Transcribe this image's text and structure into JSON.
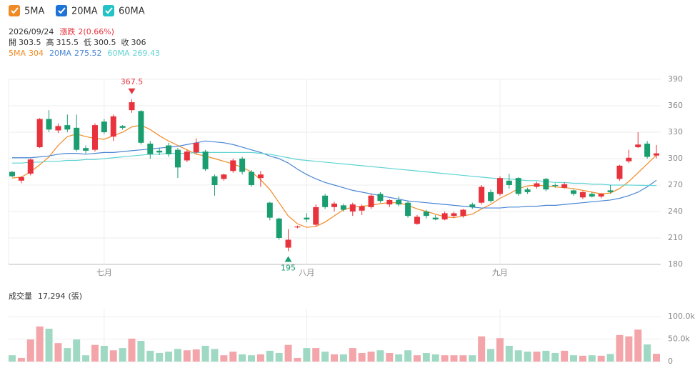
{
  "chart_data": {
    "type": "candlestick",
    "info": {
      "date": "2026/09/24",
      "change_label": "漲跌",
      "change": "2(0.66%)",
      "ohlc_labels": [
        "開",
        "高",
        "低",
        "收"
      ]
    },
    "categories": [
      null,
      null,
      null,
      null,
      null,
      null,
      null,
      null,
      null,
      null,
      "七月",
      null,
      null,
      null,
      null,
      null,
      null,
      null,
      null,
      null,
      null,
      null,
      null,
      null,
      null,
      null,
      null,
      null,
      null,
      null,
      null,
      null,
      "八月",
      null,
      null,
      null,
      null,
      null,
      null,
      null,
      null,
      null,
      null,
      null,
      null,
      null,
      null,
      null,
      null,
      null,
      null,
      null,
      null,
      "九月",
      null,
      null,
      null,
      null,
      null,
      null,
      null,
      null,
      null,
      null,
      null,
      null,
      null,
      null,
      null,
      null,
      null
    ],
    "open": [
      285,
      275,
      283,
      313,
      345,
      332,
      338,
      335,
      312,
      310,
      342,
      325,
      337,
      355,
      354,
      317,
      309,
      315,
      310,
      298,
      307,
      308,
      280,
      277,
      286,
      300,
      285,
      278,
      250,
      232,
      199,
      222,
      233,
      225,
      258,
      245,
      247,
      240,
      241,
      245,
      260,
      248,
      253,
      250,
      226,
      240,
      233,
      231,
      235,
      235,
      248,
      250,
      262,
      260,
      275,
      278,
      265,
      268,
      277,
      270,
      267,
      264,
      256,
      260,
      257,
      264,
      277,
      297,
      313,
      317,
      303.5
    ],
    "high": [
      286,
      280,
      300,
      346,
      355,
      340,
      350,
      350,
      315,
      340,
      345,
      350,
      338,
      367.5,
      355,
      320,
      312,
      318,
      312,
      310,
      323,
      310,
      282,
      283,
      300,
      302,
      287,
      286,
      251,
      233,
      220,
      224,
      238,
      248,
      260,
      251,
      249,
      250,
      248,
      260,
      262,
      254,
      257,
      252,
      236,
      242,
      236,
      240,
      240,
      243,
      250,
      270,
      265,
      280,
      283,
      279,
      267,
      274,
      278,
      272,
      273,
      265,
      263,
      262,
      261,
      270,
      293,
      310,
      330,
      320,
      315.5
    ],
    "low": [
      279,
      272,
      281,
      312,
      330,
      329,
      330,
      308,
      306,
      308,
      328,
      320,
      333,
      352,
      316,
      300,
      304,
      302,
      278,
      296,
      305,
      286,
      258,
      275,
      284,
      282,
      268,
      268,
      230,
      208,
      195,
      221,
      228,
      223,
      243,
      240,
      240,
      235,
      236,
      243,
      250,
      245,
      246,
      233,
      225,
      232,
      230,
      230,
      233,
      233,
      243,
      248,
      250,
      258,
      266,
      258,
      260,
      266,
      263,
      267,
      266,
      258,
      254,
      256,
      255,
      260,
      275,
      295,
      312,
      300,
      300.5
    ],
    "close": [
      280,
      279,
      299,
      345,
      333,
      337,
      333,
      310,
      309,
      338,
      330,
      348,
      335,
      364,
      318,
      305,
      307,
      305,
      290,
      308,
      318,
      288,
      270,
      282,
      298,
      285,
      270,
      282,
      233,
      210,
      208,
      223,
      231,
      245,
      245,
      249,
      242,
      248,
      246,
      258,
      252,
      253,
      248,
      235,
      234,
      235,
      231,
      238,
      238,
      242,
      245,
      268,
      252,
      278,
      270,
      260,
      262,
      272,
      265,
      269,
      271,
      260,
      262,
      257,
      260,
      262,
      292,
      301,
      316,
      302,
      306
    ],
    "series": [
      {
        "name": "5MA",
        "color": "#f08a24",
        "values": [
          278,
          279,
          285,
          293,
          302,
          315,
          325,
          328,
          325,
          323,
          322,
          326,
          330,
          336,
          338,
          333,
          326,
          320,
          315,
          310,
          305,
          303,
          300,
          297,
          294,
          290,
          285,
          276,
          265,
          250,
          235,
          226,
          222,
          223,
          228,
          235,
          242,
          245,
          246,
          247,
          249,
          250,
          250,
          247,
          243,
          240,
          237,
          234,
          233,
          235,
          237,
          243,
          248,
          255,
          260,
          266,
          269,
          270,
          269,
          268,
          267,
          266,
          264,
          262,
          260,
          261,
          266,
          274,
          284,
          294,
          304
        ]
      },
      {
        "name": "20MA",
        "color": "#4a86d4",
        "values": [
          301,
          301,
          301,
          302,
          303,
          305,
          306,
          306,
          305,
          306,
          307,
          307,
          308,
          309,
          310,
          311,
          312,
          313,
          314,
          316,
          318,
          320,
          319,
          318,
          316,
          313,
          310,
          307,
          303,
          300,
          295,
          288,
          282,
          277,
          273,
          270,
          267,
          264,
          262,
          260,
          258,
          256,
          254,
          252,
          251,
          250,
          249,
          248,
          247,
          246,
          245,
          244,
          244,
          244,
          245,
          245,
          246,
          246,
          247,
          247,
          248,
          249,
          250,
          251,
          252,
          253,
          255,
          258,
          262,
          268,
          275.52
        ]
      },
      {
        "name": "60MA",
        "color": "#5fd3d3",
        "values": [
          295,
          295,
          296,
          296,
          297,
          297,
          298,
          298,
          299,
          299,
          300,
          301,
          302,
          303,
          304,
          305,
          305,
          306,
          306,
          306,
          307,
          307,
          307,
          307,
          307,
          307,
          307,
          306,
          305,
          303,
          301,
          299,
          298,
          297,
          296,
          295,
          294,
          293,
          292,
          291,
          290,
          289,
          288,
          287,
          286,
          285,
          284,
          283,
          282,
          281,
          280,
          279,
          278,
          277,
          277,
          276,
          275,
          275,
          274,
          273,
          273,
          272,
          272,
          271,
          271,
          270,
          270,
          270,
          269.8,
          269.6,
          269.43
        ]
      }
    ],
    "legend_colors": [
      "#f08a24",
      "#1e73d6",
      "#22c3c6"
    ],
    "up_color": "#e8323c",
    "down_color": "#1a9d6f",
    "ylim": [
      180,
      390
    ],
    "yticks": [
      180,
      210,
      240,
      270,
      300,
      330,
      360,
      390
    ],
    "grid": true,
    "volume": {
      "title": "成交量",
      "current_label": "17,294",
      "unit": "(張)",
      "up_color": "#f3a5aa",
      "down_color": "#9fd9c3",
      "values": [
        14000,
        8000,
        49000,
        78000,
        73000,
        41000,
        30000,
        49000,
        14000,
        37000,
        35000,
        25000,
        30000,
        51000,
        46000,
        24000,
        19000,
        22000,
        28000,
        25000,
        27000,
        35000,
        28000,
        14000,
        22000,
        16000,
        14000,
        16000,
        24000,
        19000,
        37000,
        8000,
        30000,
        30000,
        22000,
        16000,
        16000,
        30000,
        19000,
        22000,
        25000,
        19000,
        16000,
        25000,
        14000,
        19000,
        16000,
        14000,
        14000,
        14000,
        14000,
        56000,
        28000,
        52000,
        35000,
        25000,
        22000,
        22000,
        24000,
        19000,
        24000,
        14000,
        13000,
        14000,
        13000,
        17000,
        59000,
        56000,
        71000,
        38000,
        17294
      ],
      "ylim": [
        0,
        100000
      ],
      "yticks": [
        0,
        {
          "value": 50000,
          "label": "50.0k"
        },
        {
          "value": 100000,
          "label": "100.0k"
        }
      ]
    }
  }
}
